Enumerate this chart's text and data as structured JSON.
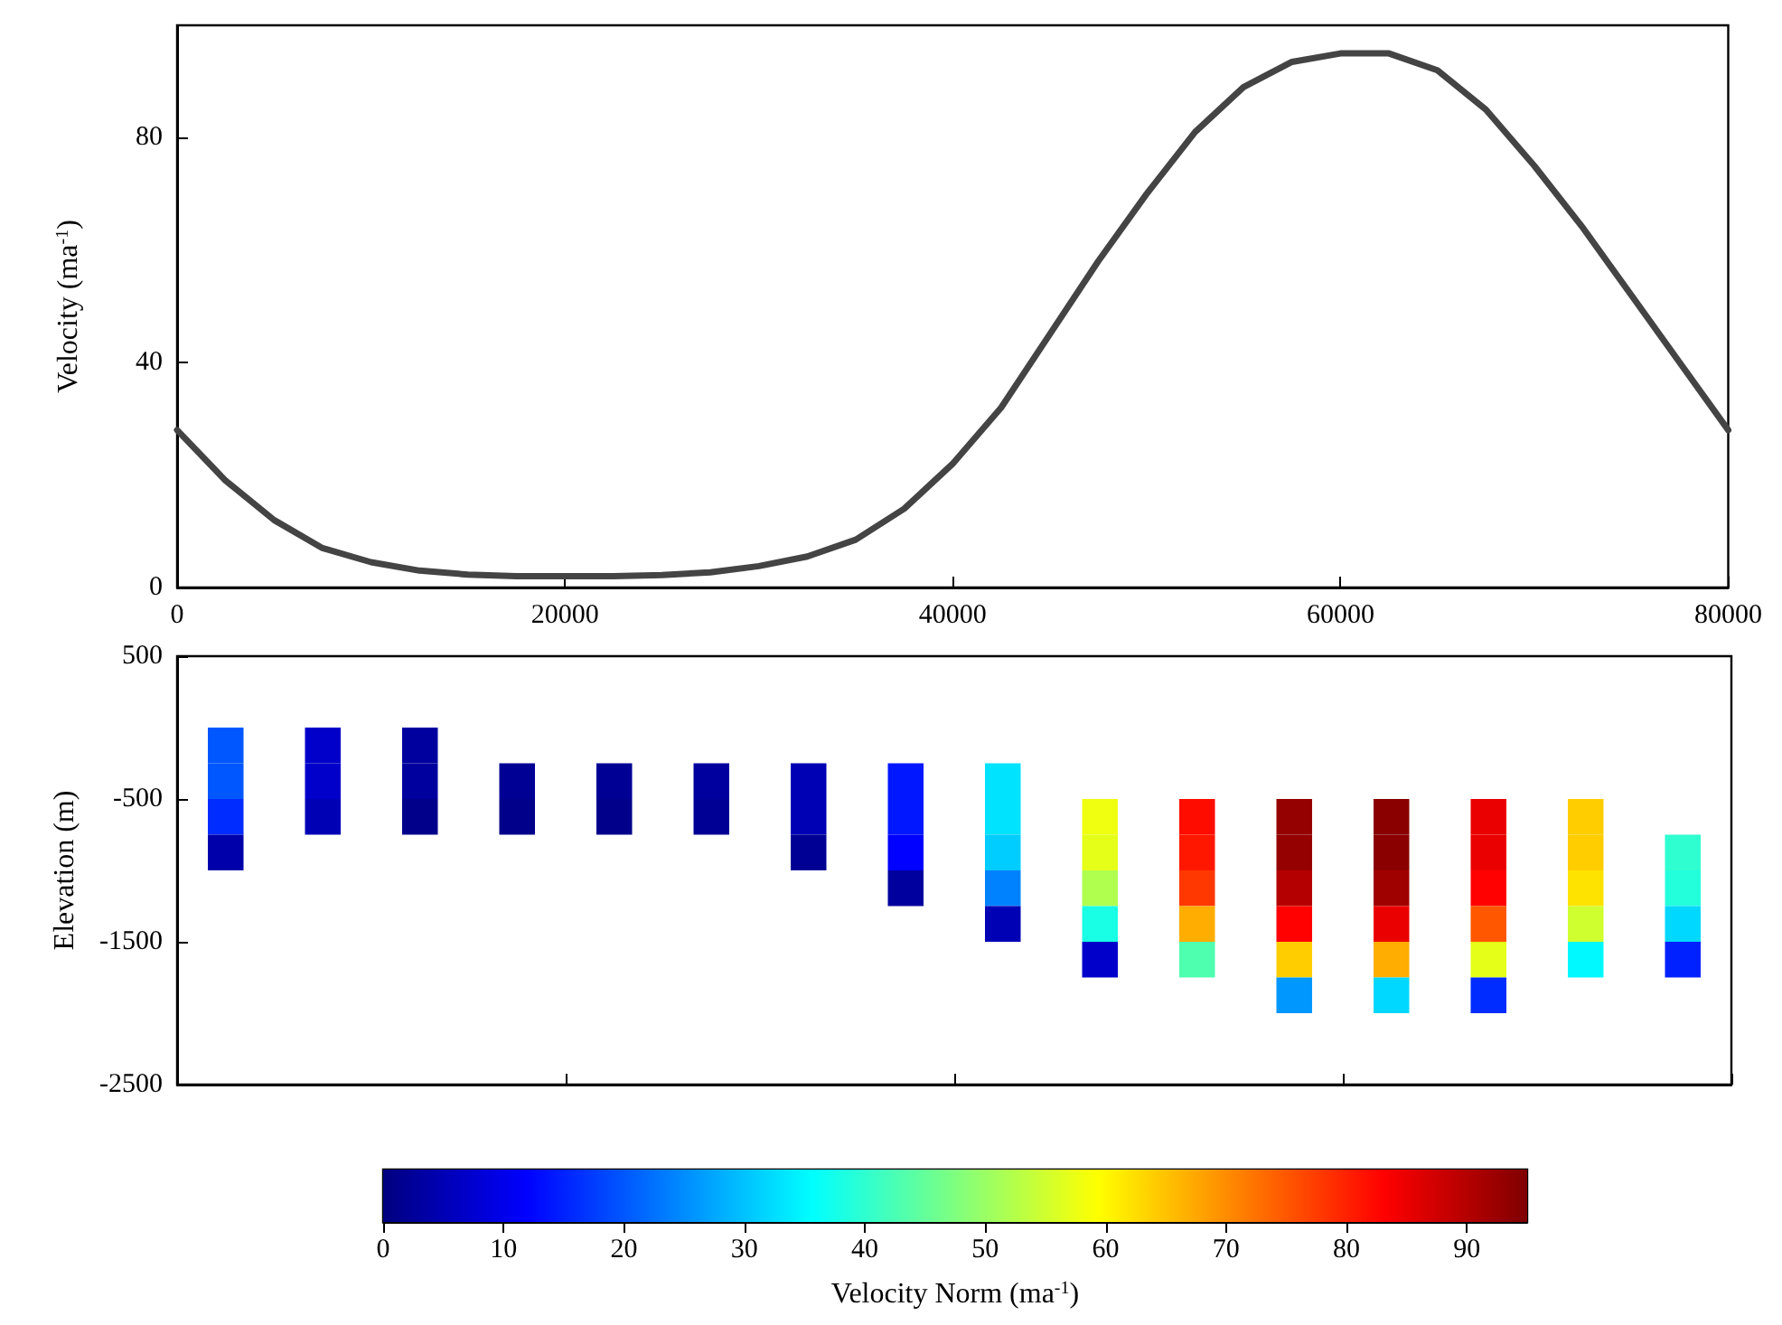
{
  "chart_data": [
    {
      "type": "line",
      "ylabel": "Velocity (ma$^{-1}$)",
      "xlim": [
        0,
        80000
      ],
      "xticks": [
        0,
        20000,
        40000,
        60000,
        80000
      ],
      "ylim": [
        0,
        100
      ],
      "yticks": [
        0,
        40,
        80
      ],
      "x": [
        0,
        2500,
        5000,
        7500,
        10000,
        12500,
        15000,
        17500,
        20000,
        22500,
        25000,
        27500,
        30000,
        32500,
        35000,
        37500,
        40000,
        42500,
        45000,
        47500,
        50000,
        52500,
        55000,
        57500,
        60000,
        62500,
        65000,
        67500,
        70000,
        72500,
        75000,
        77500,
        80000
      ],
      "series": [
        {
          "color": "#444444",
          "values": [
            28,
            19,
            12,
            7,
            4.5,
            3,
            2.3,
            2,
            2,
            2,
            2.2,
            2.7,
            3.8,
            5.5,
            8.5,
            14,
            22,
            32,
            45,
            58,
            70,
            81,
            89,
            93.5,
            95,
            95,
            92,
            85,
            75,
            64,
            52,
            40,
            28
          ]
        }
      ]
    },
    {
      "type": "scatter",
      "ylabel": "Elevation (m)",
      "clabel": "Velocity Norm (ma$^{-1}$)",
      "xlim": [
        0,
        80000
      ],
      "xticks": [
        {
          "value": 0,
          "label": null
        },
        {
          "value": 20000,
          "label": null
        },
        {
          "value": 40000,
          "label": null
        },
        {
          "value": 60000,
          "label": null
        },
        {
          "value": 80000,
          "label": null
        }
      ],
      "ylim": [
        -2500,
        500
      ],
      "yticks": [
        500,
        -500,
        -1500,
        -2500
      ],
      "tick_labels": "y",
      "clim": [
        0,
        95
      ],
      "cticks": [
        0,
        10,
        20,
        30,
        40,
        50,
        60,
        70,
        80,
        90
      ],
      "marker": "square",
      "series": [
        {
          "x": [
            2500,
            7500,
            12500,
            2500,
            7500,
            12500,
            17500,
            22500,
            27500,
            32500,
            37500,
            42500,
            2500,
            7500,
            12500,
            17500,
            22500,
            27500,
            32500,
            37500,
            42500,
            47500,
            52500,
            57500,
            62500,
            67500,
            72500,
            2500,
            32500,
            37500,
            42500,
            47500,
            52500,
            57500,
            62500,
            67500,
            72500,
            77500,
            37500,
            42500,
            47500,
            52500,
            57500,
            62500,
            67500,
            72500,
            77500,
            42500,
            47500,
            52500,
            57500,
            62500,
            67500,
            72500,
            77500,
            47500,
            52500,
            57500,
            62500,
            67500,
            72500,
            77500,
            57500,
            62500,
            67500
          ],
          "values": [
            -125,
            -125,
            -125,
            -375,
            -375,
            -375,
            -375,
            -375,
            -375,
            -375,
            -375,
            -375,
            -625,
            -625,
            -625,
            -625,
            -625,
            -625,
            -625,
            -625,
            -625,
            -625,
            -625,
            -625,
            -625,
            -625,
            -625,
            -875,
            -875,
            -875,
            -875,
            -875,
            -875,
            -875,
            -875,
            -875,
            -875,
            -875,
            -1125,
            -1125,
            -1125,
            -1125,
            -1125,
            -1125,
            -1125,
            -1125,
            -1125,
            -1375,
            -1375,
            -1375,
            -1375,
            -1375,
            -1375,
            -1375,
            -1375,
            -1625,
            -1625,
            -1625,
            -1625,
            -1625,
            -1625,
            -1625,
            -1875,
            -1875,
            -1875
          ],
          "cvalues": [
            20,
            7,
            3,
            20,
            7,
            3,
            2,
            2,
            3,
            5,
            14,
            33,
            16,
            5,
            1,
            1,
            1,
            2,
            5,
            14,
            33,
            58,
            82,
            93,
            94,
            85,
            64,
            4,
            2,
            12,
            31,
            57,
            81,
            93,
            94,
            85,
            64,
            40,
            3,
            24,
            52,
            78,
            90,
            92,
            83,
            62,
            39,
            5,
            38,
            67,
            83,
            85,
            75,
            55,
            32,
            7,
            43,
            64,
            67,
            57,
            35,
            15,
            26,
            32,
            16
          ]
        }
      ]
    }
  ]
}
